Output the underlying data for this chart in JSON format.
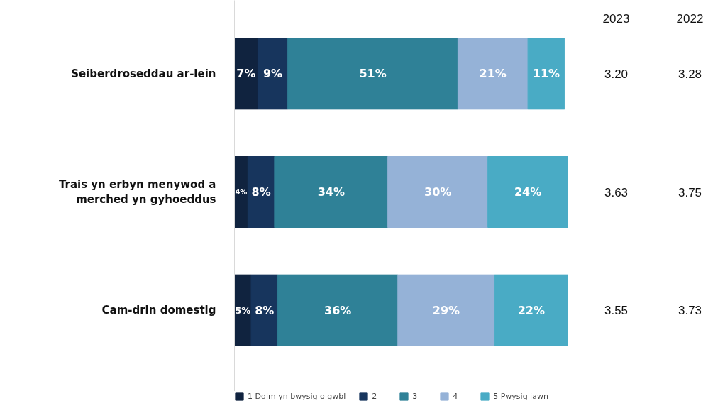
{
  "chart_data": {
    "type": "bar",
    "orientation": "horizontal",
    "stacked": true,
    "categories": [
      "Seiberdroseddau ar-lein",
      "Trais yn erbyn menywod a merched yn gyhoeddus",
      "Cam-drin domestig"
    ],
    "series": [
      {
        "name": "1 Ddim yn bwysig o gwbl",
        "color": "#10233f",
        "values": [
          7,
          4,
          5
        ],
        "value_labels": [
          "7%",
          "4%",
          "5%"
        ]
      },
      {
        "name": "2",
        "color": "#17355d",
        "values": [
          9,
          8,
          8
        ],
        "value_labels": [
          "9%",
          "8%",
          "8%"
        ]
      },
      {
        "name": "3",
        "color": "#2f8197",
        "values": [
          51,
          34,
          36
        ],
        "value_labels": [
          "51%",
          "34%",
          "36%"
        ]
      },
      {
        "name": "4",
        "color": "#95b2d7",
        "values": [
          21,
          30,
          29
        ],
        "value_labels": [
          "21%",
          "30%",
          "29%"
        ]
      },
      {
        "name": "5 Pwysig iawn",
        "color": "#49abc5",
        "values": [
          11,
          24,
          22
        ],
        "value_labels": [
          "11%",
          "24%",
          "22%"
        ]
      }
    ],
    "annotations": [
      "2023",
      "2022",
      "3.20",
      "3.28",
      "3.63",
      "3.75",
      "3.55",
      "3.73"
    ],
    "legend": "bottom",
    "grid": false
  }
}
